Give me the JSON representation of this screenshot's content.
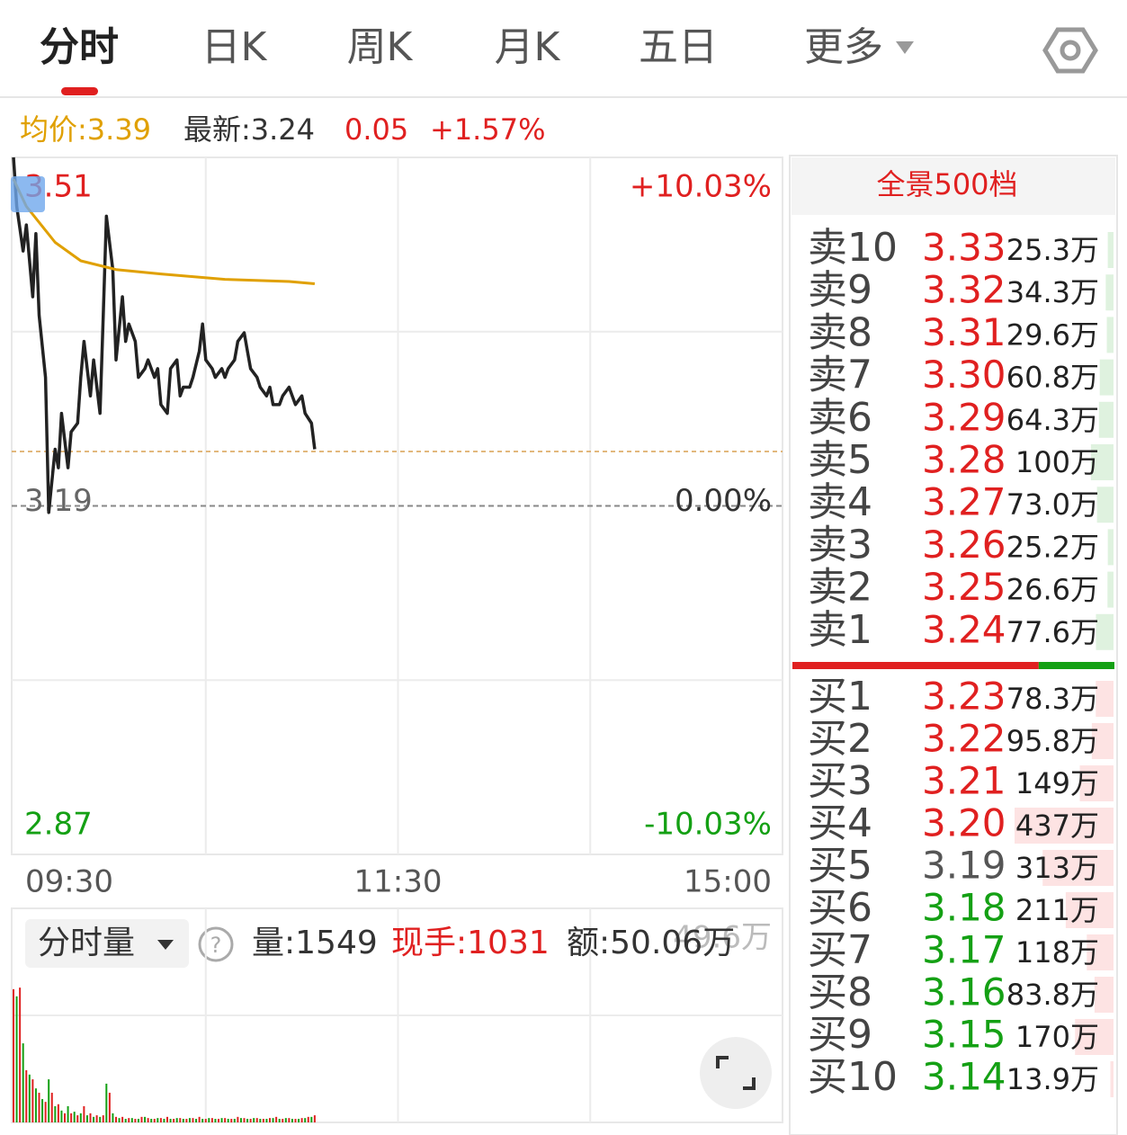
{
  "tabs": {
    "items": [
      "分时",
      "日K",
      "周K",
      "月K",
      "五日",
      "更多"
    ],
    "active": 0
  },
  "info": {
    "avg": "均价:3.39",
    "latest": "最新:3.24",
    "change": "0.05",
    "change_pct": "+1.57%"
  },
  "chart_data": [
    {
      "type": "line",
      "latest": 3.24,
      "xlim": [
        0,
        240
      ],
      "xticks": [
        {
          "value": 0,
          "label": "09:30"
        },
        {
          "value": 120,
          "label": "11:30"
        },
        {
          "value": 240,
          "label": "15:00"
        }
      ],
      "ylim": [
        2.87,
        3.51
      ],
      "yticks": [
        3.51,
        3.19,
        2.87
      ],
      "ytick_colors": [
        "#e02020",
        "#666666",
        "#14a014"
      ],
      "y2lim": [
        -10.03,
        10.03
      ],
      "y2ticks": [
        {
          "value": 10.03,
          "label": "+10.03%"
        },
        {
          "value": 0,
          "label": "0.00%"
        },
        {
          "value": -10.03,
          "label": "-10.03%"
        }
      ],
      "y2tick_colors": [
        "#e02020",
        "#333333",
        "#14a014"
      ],
      "series": [
        {
          "color": "#222222",
          "x": [
            0,
            1,
            3,
            4,
            6,
            7,
            8,
            10,
            11,
            13,
            14,
            15,
            17,
            18,
            20,
            21,
            22,
            24,
            25,
            27,
            28,
            29,
            31,
            32,
            34,
            35,
            36,
            38,
            39,
            41,
            42,
            44,
            45,
            46,
            48,
            49,
            51,
            52,
            53,
            55,
            56,
            58,
            59,
            60,
            62,
            63,
            65,
            66,
            67,
            69,
            70,
            72,
            73,
            74,
            76,
            77,
            79,
            80,
            81,
            83,
            84,
            86,
            87,
            88,
            90,
            91,
            93,
            94
          ],
          "values": [
            3.51,
            3.465,
            3.424,
            3.448,
            3.382,
            3.44,
            3.365,
            3.308,
            3.184,
            3.242,
            3.225,
            3.275,
            3.225,
            3.258,
            3.266,
            3.308,
            3.341,
            3.291,
            3.324,
            3.275,
            3.365,
            3.456,
            3.407,
            3.324,
            3.382,
            3.341,
            3.357,
            3.341,
            3.308,
            3.316,
            3.324,
            3.308,
            3.316,
            3.283,
            3.275,
            3.316,
            3.324,
            3.291,
            3.299,
            3.299,
            3.308,
            3.332,
            3.357,
            3.324,
            3.316,
            3.308,
            3.316,
            3.308,
            3.316,
            3.324,
            3.341,
            3.349,
            3.332,
            3.316,
            3.308,
            3.299,
            3.291,
            3.299,
            3.283,
            3.283,
            3.291,
            3.299,
            3.291,
            3.283,
            3.291,
            3.275,
            3.266,
            3.242
          ]
        },
        {
          "color": "#e0a000",
          "x": [
            0,
            4,
            13,
            21,
            32,
            46,
            66,
            86,
            94
          ],
          "values": [
            3.49,
            3.465,
            3.432,
            3.415,
            3.407,
            3.403,
            3.398,
            3.396,
            3.394
          ]
        }
      ]
    },
    {
      "type": "bar",
      "xlim": [
        0,
        240
      ],
      "ylim": [
        0,
        49.6
      ],
      "yticks": [
        {
          "value": 49.6,
          "label": "49.6万"
        }
      ],
      "series": [
        {
          "color": "#e02020",
          "x": [
            0,
            2,
            4,
            6,
            8,
            10,
            12,
            14,
            16,
            18,
            20,
            22,
            24,
            26,
            28,
            30,
            32,
            34,
            36,
            38,
            40,
            42,
            44,
            46,
            48,
            50,
            52,
            54,
            56,
            58,
            60,
            62,
            64,
            66,
            68,
            70,
            72,
            74,
            76,
            78,
            80,
            82,
            84,
            86,
            88,
            90,
            92,
            94
          ],
          "values": [
            33.7,
            34.1,
            13.2,
            10.9,
            7.5,
            5.2,
            7.5,
            4.6,
            2.3,
            2.3,
            1.8,
            4.1,
            2.3,
            1.8,
            1.8,
            7.5,
            1.4,
            1.4,
            1.1,
            0.9,
            1.4,
            1.1,
            0.9,
            1.1,
            1.4,
            0.9,
            1.1,
            0.9,
            1.1,
            1.4,
            0.9,
            1.1,
            0.9,
            1.1,
            0.9,
            1.4,
            1.1,
            0.9,
            1.1,
            0.9,
            1.1,
            1.4,
            0.9,
            1.1,
            0.9,
            1.1,
            1.4,
            1.8
          ]
        },
        {
          "color": "#14a014",
          "x": [
            1,
            3,
            5,
            7,
            9,
            11,
            13,
            15,
            17,
            19,
            21,
            23,
            25,
            27,
            29,
            31,
            33,
            35,
            37,
            39,
            41,
            43,
            45,
            47,
            49,
            51,
            53,
            55,
            57,
            59,
            61,
            63,
            65,
            67,
            69,
            71,
            73,
            75,
            77,
            79,
            81,
            83,
            85,
            87,
            89,
            91,
            93
          ],
          "values": [
            31.9,
            20.0,
            12.1,
            8.6,
            5.9,
            10.9,
            4.1,
            3.0,
            4.1,
            2.7,
            2.3,
            1.8,
            1.4,
            1.4,
            9.8,
            2.3,
            1.1,
            0.9,
            1.1,
            0.9,
            1.4,
            0.9,
            1.1,
            0.9,
            0.9,
            1.1,
            0.9,
            1.1,
            0.9,
            0.9,
            1.1,
            0.9,
            1.1,
            0.9,
            0.9,
            1.1,
            0.9,
            1.1,
            0.9,
            0.9,
            1.1,
            0.9,
            1.1,
            0.9,
            0.9,
            1.1,
            1.4
          ]
        }
      ]
    }
  ],
  "volume_header": {
    "selector": "分时量",
    "volume": "量:1549",
    "current_hands": "现手:1031",
    "amount": "额:50.06万"
  },
  "order_book": {
    "title": "全景500档",
    "bid_share": 76.5,
    "asks": [
      {
        "level": "卖10",
        "price": "3.33",
        "volume": 25.3,
        "volume_label": "25.3万",
        "color": "#e02020"
      },
      {
        "level": "卖9",
        "price": "3.32",
        "volume": 34.3,
        "volume_label": "34.3万",
        "color": "#e02020"
      },
      {
        "level": "卖8",
        "price": "3.31",
        "volume": 29.6,
        "volume_label": "29.6万",
        "color": "#e02020"
      },
      {
        "level": "卖7",
        "price": "3.30",
        "volume": 60.8,
        "volume_label": "60.8万",
        "color": "#e02020"
      },
      {
        "level": "卖6",
        "price": "3.29",
        "volume": 64.3,
        "volume_label": "64.3万",
        "color": "#e02020"
      },
      {
        "level": "卖5",
        "price": "3.28",
        "volume": 100,
        "volume_label": "100万",
        "color": "#e02020"
      },
      {
        "level": "卖4",
        "price": "3.27",
        "volume": 73.0,
        "volume_label": "73.0万",
        "color": "#e02020"
      },
      {
        "level": "卖3",
        "price": "3.26",
        "volume": 25.2,
        "volume_label": "25.2万",
        "color": "#e02020"
      },
      {
        "level": "卖2",
        "price": "3.25",
        "volume": 26.6,
        "volume_label": "26.6万",
        "color": "#e02020"
      },
      {
        "level": "卖1",
        "price": "3.24",
        "volume": 77.6,
        "volume_label": "77.6万",
        "color": "#e02020"
      }
    ],
    "bids": [
      {
        "level": "买1",
        "price": "3.23",
        "volume": 78.3,
        "volume_label": "78.3万",
        "color": "#e02020"
      },
      {
        "level": "买2",
        "price": "3.22",
        "volume": 95.8,
        "volume_label": "95.8万",
        "color": "#e02020"
      },
      {
        "level": "买3",
        "price": "3.21",
        "volume": 149,
        "volume_label": "149万",
        "color": "#e02020"
      },
      {
        "level": "买4",
        "price": "3.20",
        "volume": 437,
        "volume_label": "437万",
        "color": "#e02020"
      },
      {
        "level": "买5",
        "price": "3.19",
        "volume": 313,
        "volume_label": "313万",
        "color": "#555555"
      },
      {
        "level": "买6",
        "price": "3.18",
        "volume": 211,
        "volume_label": "211万",
        "color": "#14a014"
      },
      {
        "level": "买7",
        "price": "3.17",
        "volume": 118,
        "volume_label": "118万",
        "color": "#14a014"
      },
      {
        "level": "买8",
        "price": "3.16",
        "volume": 83.8,
        "volume_label": "83.8万",
        "color": "#14a014"
      },
      {
        "level": "买9",
        "price": "3.15",
        "volume": 170,
        "volume_label": "170万",
        "color": "#14a014"
      },
      {
        "level": "买10",
        "price": "3.14",
        "volume": 13.9,
        "volume_label": "13.9万",
        "color": "#14a014"
      }
    ]
  }
}
